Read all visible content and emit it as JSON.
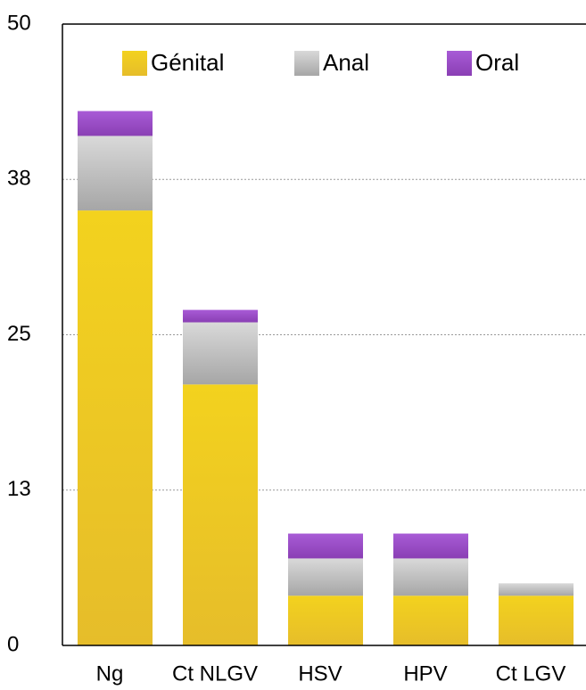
{
  "chart_data": {
    "type": "stacked_bar",
    "categories": [
      "Ng",
      "Ct NLGV",
      "HSV",
      "HPV",
      "Ct LGV"
    ],
    "series": [
      {
        "name": "Génital",
        "color": "#f0cd22",
        "values": [
          35,
          21,
          4,
          4,
          4
        ]
      },
      {
        "name": "Anal",
        "color": "#b9b9b9",
        "values": [
          6,
          5,
          3,
          3,
          1
        ]
      },
      {
        "name": "Oral",
        "color": "#9a4fc6",
        "values": [
          2,
          1,
          2,
          2,
          0
        ]
      }
    ],
    "ylim": [
      0,
      50
    ],
    "yticks": [
      0,
      {
        "value": 12.5,
        "label": "13"
      },
      25,
      {
        "value": 37.5,
        "label": "38"
      },
      50
    ],
    "grid": true,
    "legend": "top"
  }
}
